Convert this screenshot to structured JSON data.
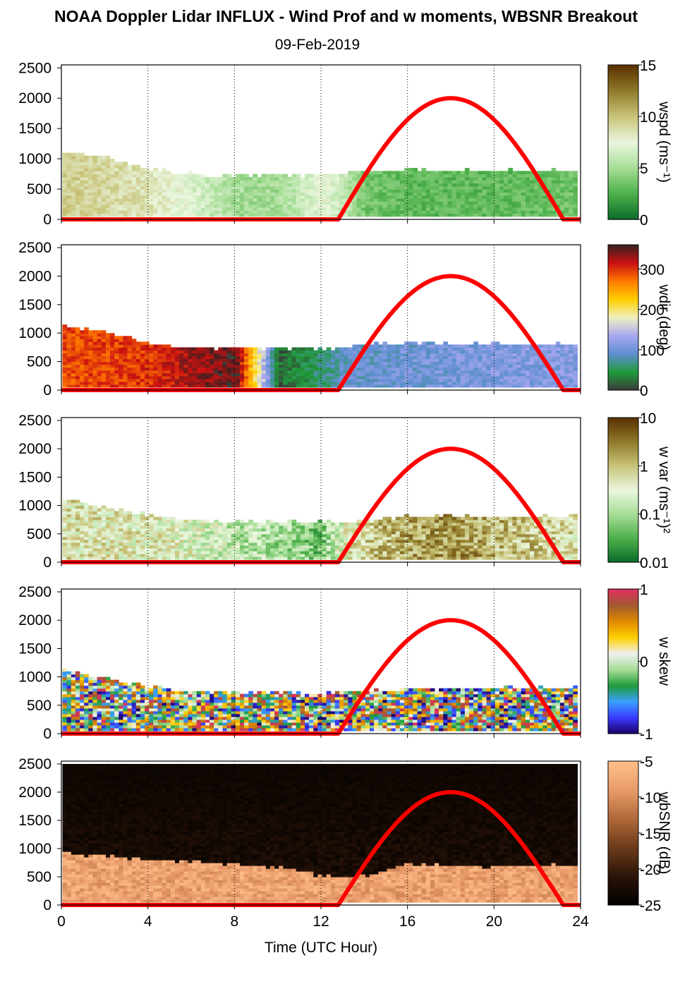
{
  "title": "NOAA Doppler Lidar INFLUX - Wind Prof and w moments, WBSNR Breakout",
  "date": "09-Feb-2019",
  "xlabel": "Time (UTC Hour)",
  "x_ticks": [
    "0",
    "4",
    "8",
    "12",
    "16",
    "20",
    "24"
  ],
  "y_ticks": [
    "0",
    "500",
    "1000",
    "1500",
    "2000",
    "2500"
  ],
  "chart_data": [
    {
      "type": "heatmap",
      "name": "wspd",
      "colorbar_label": "wspd (ms⁻¹)",
      "colorbar_ticks": [
        "0",
        "5",
        "10",
        "15"
      ],
      "clim": [
        0,
        15
      ],
      "colors": [
        "#0a6b2a",
        "#4db04a",
        "#a6dd96",
        "#eaf7df",
        "#c9c47a",
        "#8f7a2a",
        "#5a3000"
      ],
      "xlim": [
        0,
        24
      ],
      "ylim": [
        0,
        2550
      ],
      "data_top_m": [
        [
          0,
          1100
        ],
        [
          2,
          1000
        ],
        [
          4,
          800
        ],
        [
          6,
          720
        ],
        [
          8,
          700
        ],
        [
          10,
          720
        ],
        [
          12,
          700
        ],
        [
          13,
          720
        ],
        [
          14,
          780
        ],
        [
          16,
          800
        ],
        [
          20,
          780
        ],
        [
          23.8,
          780
        ]
      ],
      "value_profile_by_hour": [
        [
          0,
          9.5
        ],
        [
          2,
          9
        ],
        [
          4,
          8.5
        ],
        [
          6,
          7
        ],
        [
          8,
          5
        ],
        [
          10,
          5
        ],
        [
          12,
          7.5
        ],
        [
          13,
          6
        ],
        [
          14,
          3.5
        ],
        [
          16,
          3
        ],
        [
          20,
          3
        ],
        [
          23.8,
          3.5
        ]
      ],
      "sun_curve": {
        "rise_hour": 12.8,
        "peak_hour": 18,
        "set_hour": 23.2,
        "peak_value": 2000,
        "color": "#ff0000"
      }
    },
    {
      "type": "heatmap",
      "name": "wdir",
      "colorbar_label": "wdir (deg)",
      "colorbar_ticks": [
        "0",
        "100",
        "200",
        "300"
      ],
      "clim": [
        0,
        360
      ],
      "colors": [
        "#3a3a3a",
        "#1f9b3a",
        "#5f8fd0",
        "#a6a6f0",
        "#f0f0c0",
        "#ffd000",
        "#ff7a00",
        "#cc1111",
        "#3a2020"
      ],
      "xlim": [
        0,
        24
      ],
      "ylim": [
        0,
        2550
      ],
      "data_top_m": [
        [
          0,
          1100
        ],
        [
          2,
          1000
        ],
        [
          4,
          800
        ],
        [
          6,
          720
        ],
        [
          8,
          700
        ],
        [
          10,
          720
        ],
        [
          12,
          700
        ],
        [
          13,
          720
        ],
        [
          14,
          780
        ],
        [
          16,
          800
        ],
        [
          20,
          780
        ],
        [
          23.8,
          780
        ]
      ],
      "value_profile_by_hour": [
        [
          0,
          290
        ],
        [
          4,
          300
        ],
        [
          6,
          330
        ],
        [
          8,
          350
        ],
        [
          10,
          20
        ],
        [
          12,
          60
        ],
        [
          13,
          90
        ],
        [
          16,
          100
        ],
        [
          20,
          110
        ],
        [
          23.8,
          115
        ]
      ],
      "sun_curve": {
        "rise_hour": 12.8,
        "peak_hour": 18,
        "set_hour": 23.2,
        "peak_value": 2000,
        "color": "#ff0000"
      }
    },
    {
      "type": "heatmap",
      "name": "w var",
      "colorbar_label": "w var (ms⁻¹)²",
      "colorbar_ticks": [
        "0.01",
        "0.1",
        "1",
        "10"
      ],
      "clim": [
        0.01,
        10
      ],
      "log_scale": true,
      "colors": [
        "#0a6b2a",
        "#4db04a",
        "#a6dd96",
        "#eaf7df",
        "#c9c47a",
        "#8f7a2a",
        "#5a3000"
      ],
      "xlim": [
        0,
        24
      ],
      "ylim": [
        0,
        2550
      ],
      "data_top_m": [
        [
          0,
          1100
        ],
        [
          2,
          950
        ],
        [
          4,
          800
        ],
        [
          6,
          720
        ],
        [
          8,
          700
        ],
        [
          10,
          680
        ],
        [
          12,
          680
        ],
        [
          13,
          700
        ],
        [
          16,
          780
        ],
        [
          20,
          780
        ],
        [
          23.8,
          780
        ]
      ],
      "value_profile_by_hour": [
        [
          0,
          0.5
        ],
        [
          4,
          0.4
        ],
        [
          8,
          0.15
        ],
        [
          12,
          0.05
        ],
        [
          13,
          0.3
        ],
        [
          16,
          1.5
        ],
        [
          18,
          2
        ],
        [
          20,
          1.2
        ],
        [
          23.8,
          0.5
        ]
      ],
      "sun_curve": {
        "rise_hour": 12.8,
        "peak_hour": 18,
        "set_hour": 23.2,
        "peak_value": 2000,
        "color": "#ff0000"
      }
    },
    {
      "type": "heatmap",
      "name": "w skew",
      "colorbar_label": "w skew",
      "colorbar_ticks": [
        "-1",
        "0",
        "1"
      ],
      "clim": [
        -1,
        1
      ],
      "colors": [
        "#1a0060",
        "#3a3aff",
        "#3aa0ff",
        "#1f9b3a",
        "#a6dd96",
        "#f0f0f0",
        "#ffd000",
        "#e08a00",
        "#a05a30",
        "#e03060"
      ],
      "xlim": [
        0,
        24
      ],
      "ylim": [
        0,
        2550
      ],
      "data_top_m": [
        [
          0,
          1100
        ],
        [
          2,
          950
        ],
        [
          4,
          800
        ],
        [
          6,
          720
        ],
        [
          8,
          700
        ],
        [
          12,
          680
        ],
        [
          16,
          760
        ],
        [
          20,
          780
        ],
        [
          23.8,
          780
        ]
      ],
      "sun_curve": {
        "rise_hour": 12.8,
        "peak_hour": 18,
        "set_hour": 23.2,
        "peak_value": 2000,
        "color": "#ff0000"
      }
    },
    {
      "type": "heatmap",
      "name": "wbSNR",
      "colorbar_label": "wbSNR (dB)",
      "colorbar_ticks": [
        "-25",
        "-20",
        "-15",
        "-10",
        "-5"
      ],
      "clim": [
        -25,
        -5
      ],
      "colors": [
        "#000000",
        "#2a1408",
        "#6a3a1a",
        "#b06838",
        "#e89a6a",
        "#ffbf8a"
      ],
      "xlim": [
        0,
        24
      ],
      "ylim": [
        0,
        2550
      ],
      "data_top_m": [
        [
          0,
          900
        ],
        [
          4,
          780
        ],
        [
          8,
          700
        ],
        [
          10,
          650
        ],
        [
          12,
          500
        ],
        [
          14,
          500
        ],
        [
          16,
          700
        ],
        [
          20,
          650
        ],
        [
          23.8,
          700
        ]
      ],
      "sun_curve": {
        "rise_hour": 12.8,
        "peak_hour": 18,
        "set_hour": 23.2,
        "peak_value": 2000,
        "color": "#ff0000"
      }
    }
  ]
}
